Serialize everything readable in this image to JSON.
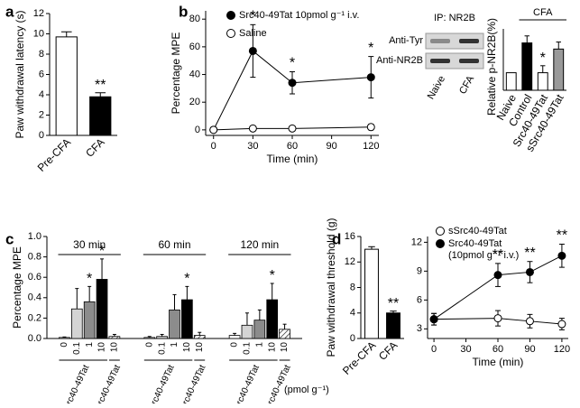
{
  "chart_data": [
    {
      "type": "bar",
      "panel": "a",
      "ylabel": "Paw withdrawal latency (s)",
      "categories": [
        "Pre-CFA",
        "CFA"
      ],
      "values": [
        9.7,
        3.8
      ],
      "errors": [
        0.5,
        0.4
      ],
      "annotations": [
        null,
        "**"
      ],
      "colors": [
        "#ffffff",
        "#000000"
      ],
      "ylim": [
        0,
        12
      ],
      "yticks": [
        0,
        2,
        4,
        6,
        8,
        10,
        12
      ]
    },
    {
      "type": "line",
      "panel": "b",
      "ylabel": "Percentage MPE",
      "xlabel": "Time (min)",
      "x": [
        0,
        30,
        60,
        120
      ],
      "series": [
        {
          "name": "Src40-49Tat  10pmol g⁻¹ i.v.",
          "color": "#000000",
          "values": [
            0,
            57,
            34,
            38
          ],
          "errors": [
            0,
            19,
            8,
            15
          ],
          "annotations": [
            null,
            "*",
            "*",
            "*"
          ]
        },
        {
          "name": "Saline",
          "color": "#ffffff",
          "values": [
            0,
            1,
            1,
            2
          ],
          "errors": [
            0,
            1,
            1,
            2
          ],
          "annotations": [
            null,
            null,
            null,
            null
          ]
        }
      ],
      "xlim": [
        -6,
        126
      ],
      "xticks": [
        0,
        30,
        60,
        90,
        120
      ],
      "ylim": [
        -4,
        86
      ],
      "yticks": [
        0,
        20,
        40,
        60,
        80
      ]
    },
    {
      "type": "bar",
      "ylabel": "Relative p-NR2B(%)",
      "header": "CFA",
      "categories": [
        "Naive",
        "Control",
        "Src40-49Tat",
        "sSrc40-49Tat"
      ],
      "values": [
        100,
        270,
        100,
        235
      ],
      "errors": [
        null,
        40,
        40,
        40
      ],
      "annotations": [
        null,
        null,
        "*",
        null
      ],
      "colors": [
        "#ffffff",
        "#000000",
        "#ffffff",
        "#999999"
      ],
      "ylim": [
        0,
        350
      ]
    },
    {
      "type": "grouped-bar",
      "panel": "c",
      "ylabel": "Percentage MPE",
      "unit": "(pmol g⁻¹)",
      "peptides": [
        {
          "name": "Src40-49Tat",
          "doses": [
            "0",
            "0.1",
            "1",
            "10"
          ]
        },
        {
          "name": "sSrc40-49Tat",
          "doses": [
            "10"
          ]
        }
      ],
      "colors": [
        "#ffffff",
        "#d4d4d4",
        "#8c8c8c",
        "#000000",
        "#ffffff"
      ],
      "hatched": [
        false,
        false,
        false,
        false,
        true
      ],
      "groups": [
        {
          "name": "30 min",
          "values": [
            0.01,
            0.29,
            0.36,
            0.58,
            0.02
          ],
          "errors": [
            0.005,
            0.2,
            0.15,
            0.2,
            0.02
          ],
          "annotations": [
            null,
            null,
            "*",
            "*",
            null
          ]
        },
        {
          "name": "60 min",
          "values": [
            0.01,
            0.02,
            0.28,
            0.38,
            0.03
          ],
          "errors": [
            0.01,
            0.02,
            0.15,
            0.13,
            0.03
          ],
          "annotations": [
            null,
            null,
            null,
            "*",
            null
          ]
        },
        {
          "name": "120 min",
          "values": [
            0.03,
            0.13,
            0.18,
            0.38,
            0.09
          ],
          "errors": [
            0.02,
            0.12,
            0.1,
            0.16,
            0.05
          ],
          "annotations": [
            null,
            null,
            null,
            "*",
            null
          ]
        }
      ],
      "ylim": [
        0,
        1
      ],
      "yticks": [
        {
          "value": 0,
          "label": "0.0"
        },
        0.2,
        0.4,
        0.6,
        0.8,
        {
          "value": 1,
          "label": "1.0"
        }
      ]
    },
    {
      "type": "bar",
      "panel": "d",
      "ylabel": "Paw withdrawal threshold (g)",
      "categories": [
        "Pre-CFA",
        "CFA"
      ],
      "values": [
        14,
        4
      ],
      "errors": [
        0.4,
        0.3
      ],
      "annotations": [
        null,
        "**"
      ],
      "colors": [
        "#ffffff",
        "#000000"
      ],
      "ylim": [
        0,
        16
      ],
      "yticks": [
        0,
        4,
        8,
        12,
        16
      ]
    },
    {
      "type": "line",
      "xlabel": "Time (min)",
      "x": [
        0,
        60,
        90,
        120
      ],
      "series": [
        {
          "name": "sSrc40-49Tat",
          "color": "#ffffff",
          "values": [
            4,
            4.1,
            3.8,
            3.5
          ],
          "errors": [
            0.6,
            0.8,
            0.7,
            0.6
          ],
          "annotations": [
            null,
            null,
            null,
            null
          ]
        },
        {
          "name": "Src40-49Tat",
          "note": "(10pmol g⁻¹ i.v.)",
          "color": "#000000",
          "values": [
            4,
            8.6,
            8.9,
            10.6
          ],
          "errors": [
            0.6,
            1.2,
            1.1,
            1.2
          ],
          "annotations": [
            null,
            "**",
            "**",
            "**"
          ]
        }
      ],
      "xlim": [
        -6,
        126
      ],
      "xticks": [
        0,
        30,
        60,
        90,
        120
      ],
      "ylim": [
        2,
        12.6
      ],
      "yticks": [
        3,
        6,
        9,
        12
      ]
    }
  ],
  "blot": {
    "title": "IP: NR2B",
    "rows": [
      "Anti-Tyr",
      "Anti-NR2B"
    ],
    "lanes": [
      "Naive",
      "CFA"
    ]
  }
}
